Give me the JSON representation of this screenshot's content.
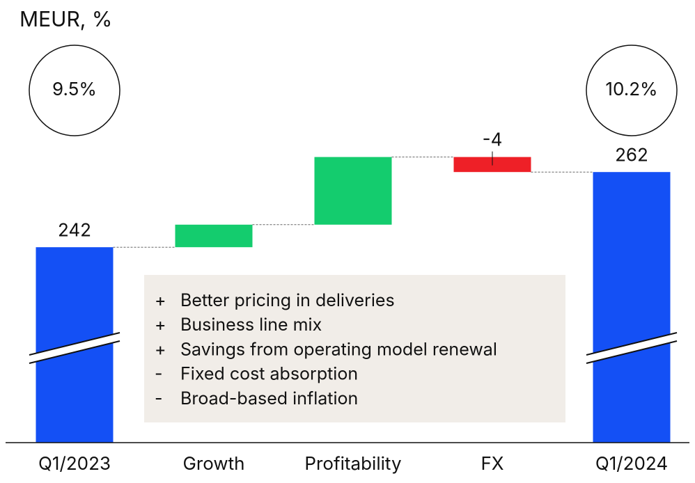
{
  "chart_data": {
    "type": "waterfall",
    "subtitle": "MEUR, %",
    "categories": [
      "Q1/2023",
      "Growth",
      "Profitability",
      "FX",
      "Q1/2024"
    ],
    "values": [
      242,
      6,
      18,
      -4,
      262
    ],
    "value_labels": [
      "242",
      null,
      null,
      "-4",
      "262"
    ],
    "totals": [
      true,
      false,
      false,
      false,
      true
    ],
    "margin_labels": [
      "9.5%",
      null,
      null,
      null,
      "10.2%"
    ],
    "colors": {
      "total": "#1450f5",
      "increase": "#14cc6e",
      "decrease": "#ee2027"
    },
    "ylim": [
      190,
      270
    ],
    "broken_axis": true,
    "notes": [
      {
        "sign": "+",
        "text": "Better pricing in deliveries"
      },
      {
        "sign": "+",
        "text": "Business line mix"
      },
      {
        "sign": "+",
        "text": "Savings from operating model renewal"
      },
      {
        "sign": "-",
        "text": "Fixed cost absorption"
      },
      {
        "sign": "-",
        "text": "Broad-based inflation"
      }
    ]
  }
}
